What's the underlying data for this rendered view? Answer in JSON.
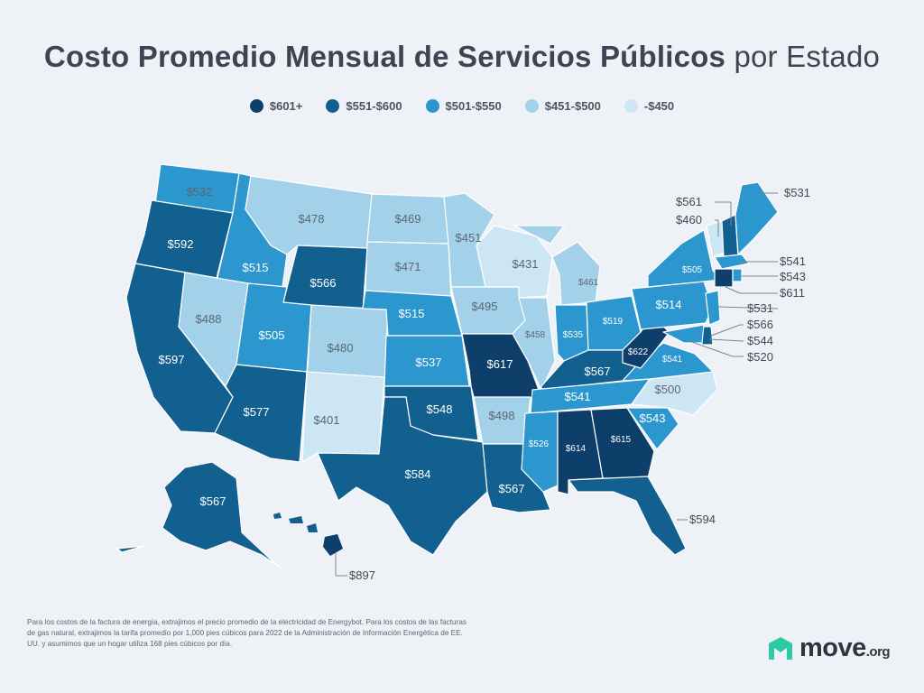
{
  "title": {
    "bold": "Costo Promedio Mensual de Servicios Públicos",
    "normal": "por Estado"
  },
  "legend": [
    {
      "label": "$601+",
      "color": "#0e3f6b"
    },
    {
      "label": "$551-$600",
      "color": "#11608f"
    },
    {
      "label": "$501-$550",
      "color": "#2c97cf"
    },
    {
      "label": "$451-$500",
      "color": "#a3d1ea"
    },
    {
      "label": "-$450",
      "color": "#cde6f4"
    }
  ],
  "states": {
    "WA": "$532",
    "OR": "$592",
    "CA": "$597",
    "ID": "$515",
    "NV": "$488",
    "MT": "$478",
    "WY": "$566",
    "UT": "$505",
    "AZ": "$577",
    "CO": "$480",
    "NM": "$401",
    "ND": "$469",
    "SD": "$471",
    "NE": "$515",
    "KS": "$537",
    "OK": "$548",
    "TX": "$584",
    "MN": "$451",
    "IA": "$495",
    "MO": "$617",
    "AR": "$498",
    "LA": "$567",
    "WI": "$431",
    "IL": "$458",
    "MI": "$461",
    "IN": "$535",
    "OH": "$519",
    "KY": "$567",
    "TN": "$541",
    "MS": "$526",
    "AL": "$614",
    "GA": "$615",
    "FL": "$594",
    "SC": "$543",
    "NC": "$500",
    "VA": "$541",
    "WV": "$622",
    "PA": "$514",
    "NY": "$505",
    "AK": "$567",
    "HI": "$897",
    "ME": "$531",
    "NH": "$561",
    "VT": "$460",
    "MA": "$541",
    "RI": "$543",
    "CT": "$611",
    "NJ": "$531",
    "DE": "$566",
    "MD": "$544",
    "DC": "$520"
  },
  "footnote": "Para los costos de la factura de energía, extrajimos el precio promedio de la electricidad de Energybot. Para los costos de las facturas de gas natural, extrajimos la tarifa promedio por 1,000 pies cúbicos para 2022 de la Administración de Información Energética de EE. UU. y asumimos que un hogar utiliza 168 pies cúbicos por día.",
  "logo": {
    "name": "move",
    "suffix": ".org",
    "brand_color": "#2fc9a5"
  }
}
